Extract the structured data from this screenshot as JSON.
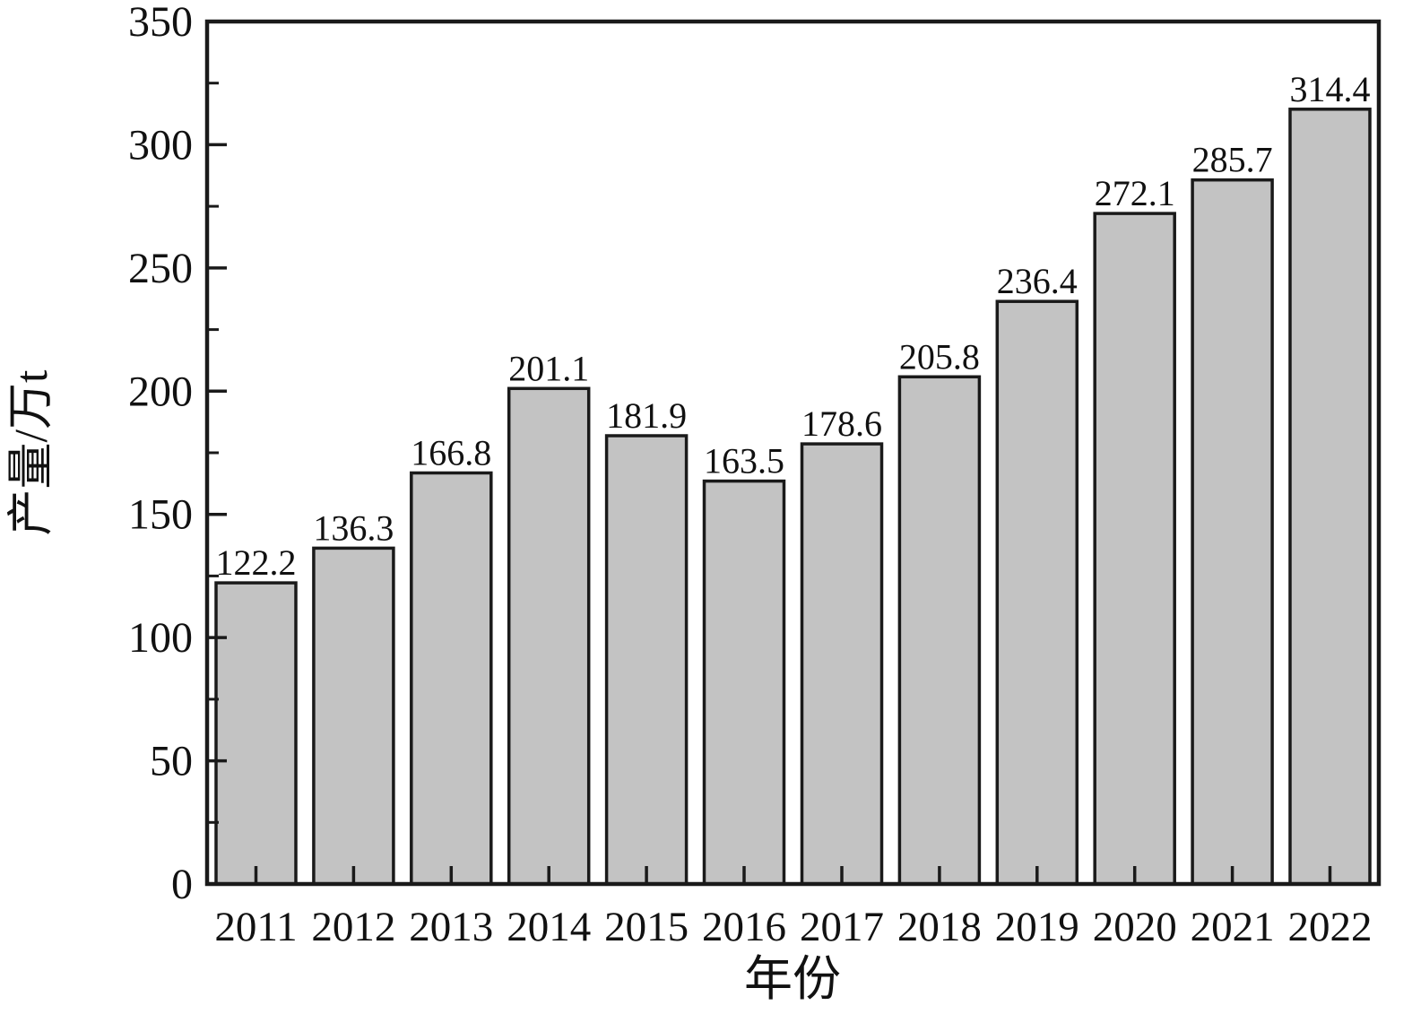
{
  "chart_data": {
    "type": "bar",
    "title": "",
    "xlabel": "年份",
    "ylabel": "产量/万t",
    "categories": [
      "2011",
      "2012",
      "2013",
      "2014",
      "2015",
      "2016",
      "2017",
      "2018",
      "2019",
      "2020",
      "2021",
      "2022"
    ],
    "values": [
      122.2,
      136.3,
      166.8,
      201.1,
      181.9,
      163.5,
      178.6,
      205.8,
      236.4,
      272.1,
      285.7,
      314.4
    ],
    "value_labels": [
      "122.2",
      "136.3",
      "166.8",
      "201.1",
      "181.9",
      "163.5",
      "178.6",
      "205.8",
      "236.4",
      "272.1",
      "285.7",
      "314.4"
    ],
    "ylim": [
      0,
      350
    ],
    "yticks": [
      0,
      50,
      100,
      150,
      200,
      250,
      300,
      350
    ],
    "ytick_labels": [
      "0",
      "50",
      "100",
      "150",
      "200",
      "250",
      "300",
      "350"
    ],
    "yticks_minor": [
      25,
      75,
      125,
      175,
      225,
      275,
      325
    ],
    "grid": false,
    "legend_position": "none",
    "colors": {
      "bar_fill": "#c3c3c3",
      "bar_edge": "#1a1a1a",
      "axis": "#1a1a1a",
      "text": "#111111",
      "background": "#ffffff"
    }
  }
}
